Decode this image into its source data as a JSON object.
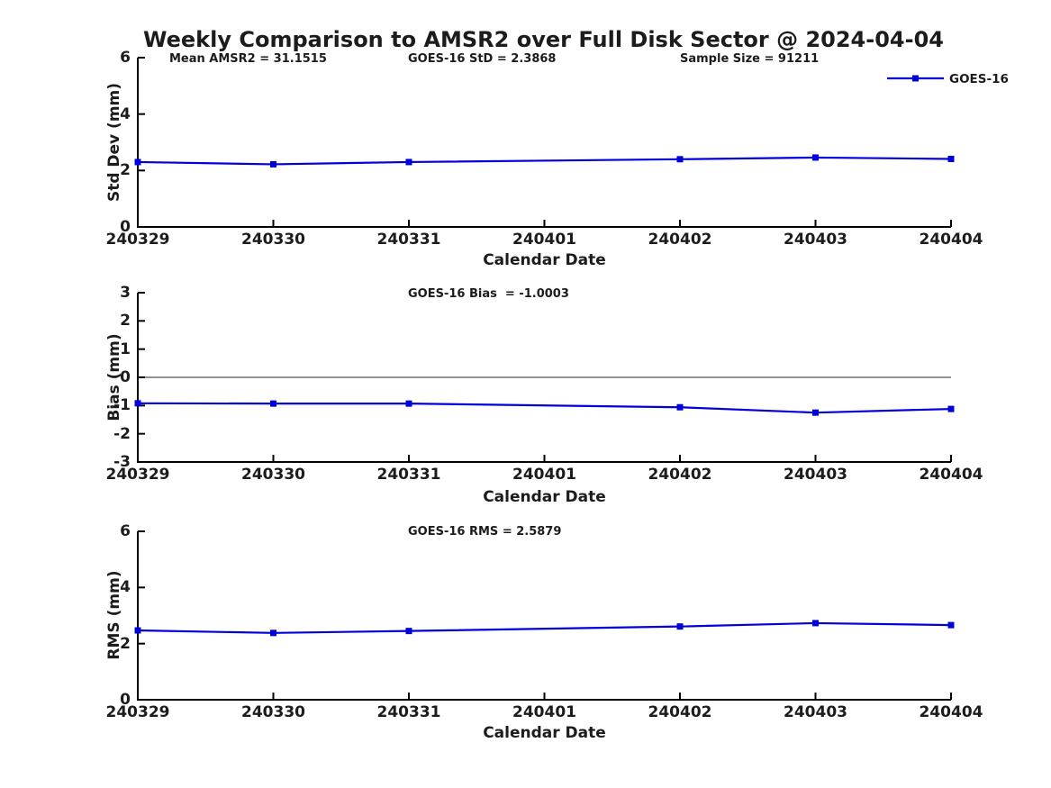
{
  "title": "Weekly Comparison to AMSR2 over Full Disk Sector @ 2024-04-04",
  "colors": {
    "line": "#0000DD",
    "axis": "#000000",
    "zero_line": "#6e6e6e",
    "text": "#1c1c1c"
  },
  "chart_data": [
    {
      "type": "line",
      "ylabel": "Std Dev (mm)",
      "xlabel": "Calendar Date",
      "ylim": [
        0,
        6
      ],
      "yticks": [
        0,
        2,
        4,
        6
      ],
      "categories": [
        "240329",
        "240330",
        "240331",
        "240401",
        "240402",
        "240403",
        "240404"
      ],
      "annotations": [
        "Mean AMSR2 = 31.1515",
        "GOES-16 StD = 2.3868",
        "Sample Size = 91211"
      ],
      "legend_position": "top-right",
      "grid": false,
      "series": [
        {
          "name": "GOES-16",
          "color": "#0000DD",
          "marker": "square",
          "values": [
            2.3,
            2.22,
            2.3,
            null,
            2.4,
            2.46,
            2.41
          ]
        }
      ]
    },
    {
      "type": "line",
      "ylabel": "Bias (mm)",
      "xlabel": "Calendar Date",
      "ylim": [
        -3,
        3
      ],
      "yticks": [
        -3,
        -2,
        -1,
        0,
        1,
        2,
        3
      ],
      "zero_line": true,
      "categories": [
        "240329",
        "240330",
        "240331",
        "240401",
        "240402",
        "240403",
        "240404"
      ],
      "annotations": [
        "GOES-16 Bias  = -1.0003"
      ],
      "grid": false,
      "series": [
        {
          "name": "GOES-16",
          "color": "#0000DD",
          "marker": "square",
          "values": [
            -0.92,
            -0.93,
            -0.93,
            null,
            -1.06,
            -1.25,
            -1.12
          ]
        }
      ]
    },
    {
      "type": "line",
      "ylabel": "RMS (mm)",
      "xlabel": "Calendar Date",
      "ylim": [
        0,
        6
      ],
      "yticks": [
        0,
        2,
        4,
        6
      ],
      "categories": [
        "240329",
        "240330",
        "240331",
        "240401",
        "240402",
        "240403",
        "240404"
      ],
      "annotations": [
        "GOES-16 RMS = 2.5879"
      ],
      "grid": false,
      "series": [
        {
          "name": "GOES-16",
          "color": "#0000DD",
          "marker": "square",
          "values": [
            2.47,
            2.38,
            2.45,
            null,
            2.61,
            2.73,
            2.66
          ]
        }
      ]
    }
  ]
}
